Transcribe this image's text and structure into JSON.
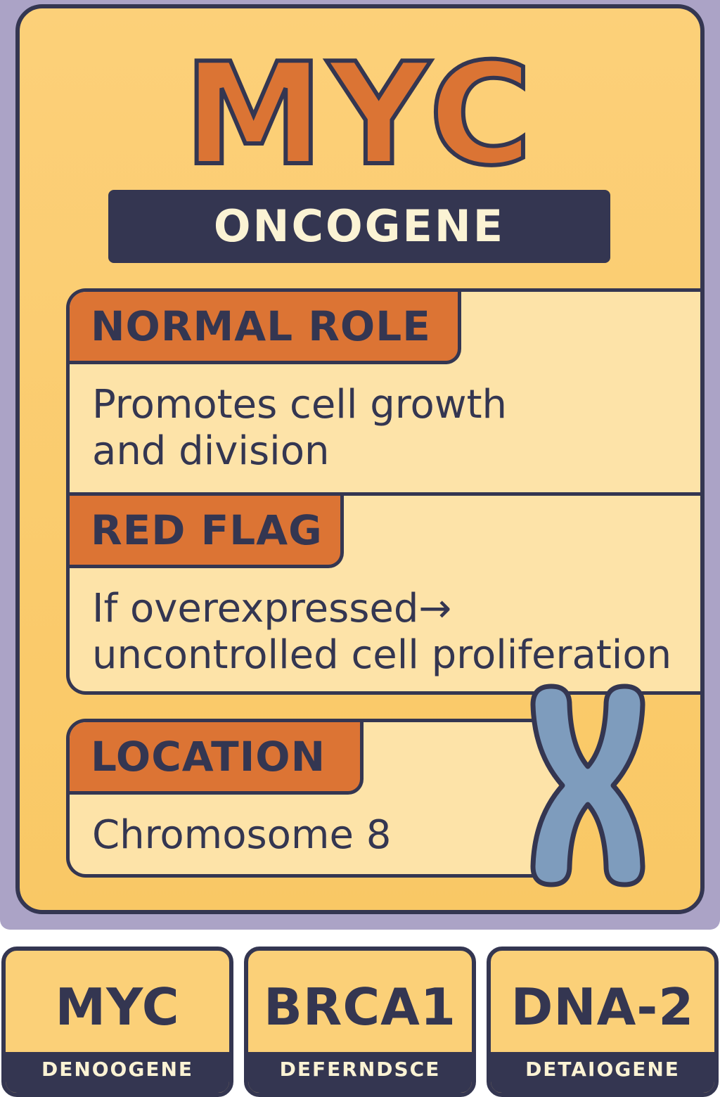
{
  "card": {
    "gene": "MYC",
    "type": "ONCOGENE",
    "normal_role": {
      "label": "NORMAL ROLE",
      "text": "Promotes cell growth\nand division"
    },
    "red_flag": {
      "label": "RED FLAG",
      "text": "If overexpressed→\nuncontrolled cell proliferation"
    },
    "location": {
      "label": "LOCATION",
      "text": "Chromosome 8"
    },
    "icon": "chromosome-icon"
  },
  "mini_cards": [
    {
      "name": "MYC",
      "type": "DENOOGENE"
    },
    {
      "name": "BRCA1",
      "type": "DEFERNDSCE"
    },
    {
      "name": "DNA-2",
      "type": "DETAIOGENE"
    }
  ],
  "colors": {
    "frame": "#aba3c6",
    "card": "#fcd079",
    "panel": "#fde3a8",
    "accent": "#dc7434",
    "dark": "#343651",
    "chromosome": "#7e9cbd"
  }
}
